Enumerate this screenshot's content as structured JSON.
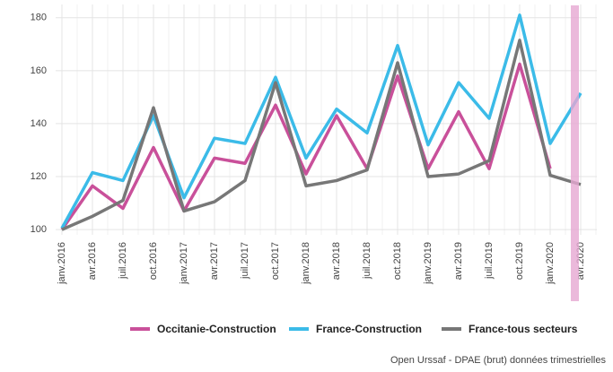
{
  "chart_data": {
    "type": "line",
    "categories": [
      "janv.2016",
      "avr.2016",
      "juil.2016",
      "oct.2016",
      "janv.2017",
      "avr.2017",
      "juil.2017",
      "oct.2017",
      "janv.2018",
      "avr.2018",
      "juil.2018",
      "oct.2018",
      "janv.2019",
      "avr.2019",
      "juil.2019",
      "oct.2019",
      "janv.2020",
      "avr.2020"
    ],
    "series": [
      {
        "name": "Occitanie-Construction",
        "color": "#c9509a",
        "values": [
          100,
          116.5,
          108,
          131,
          107,
          127,
          125,
          147,
          121,
          143,
          123,
          158,
          123,
          144.5,
          123,
          162.5,
          123,
          null
        ]
      },
      {
        "name": "France-Construction",
        "color": "#3bbbe8",
        "values": [
          100.5,
          121.5,
          118.5,
          143,
          112,
          134.5,
          132.5,
          157.5,
          127,
          145.5,
          136.5,
          169.5,
          132,
          155.5,
          142,
          181,
          132.5,
          151.5
        ]
      },
      {
        "name": "France-tous secteurs",
        "color": "#777777",
        "values": [
          100,
          105,
          111,
          146,
          107,
          110.5,
          118.5,
          155.5,
          116.5,
          118.5,
          122.5,
          163,
          120,
          121,
          126,
          171.5,
          120.5,
          117
        ]
      }
    ],
    "ylim": [
      98,
      185
    ],
    "yticks": [
      100,
      120,
      140,
      160,
      180
    ],
    "grid": true,
    "legend": "bottom",
    "source": "Open Urssaf - DPAE (brut) données trimestrielles"
  }
}
